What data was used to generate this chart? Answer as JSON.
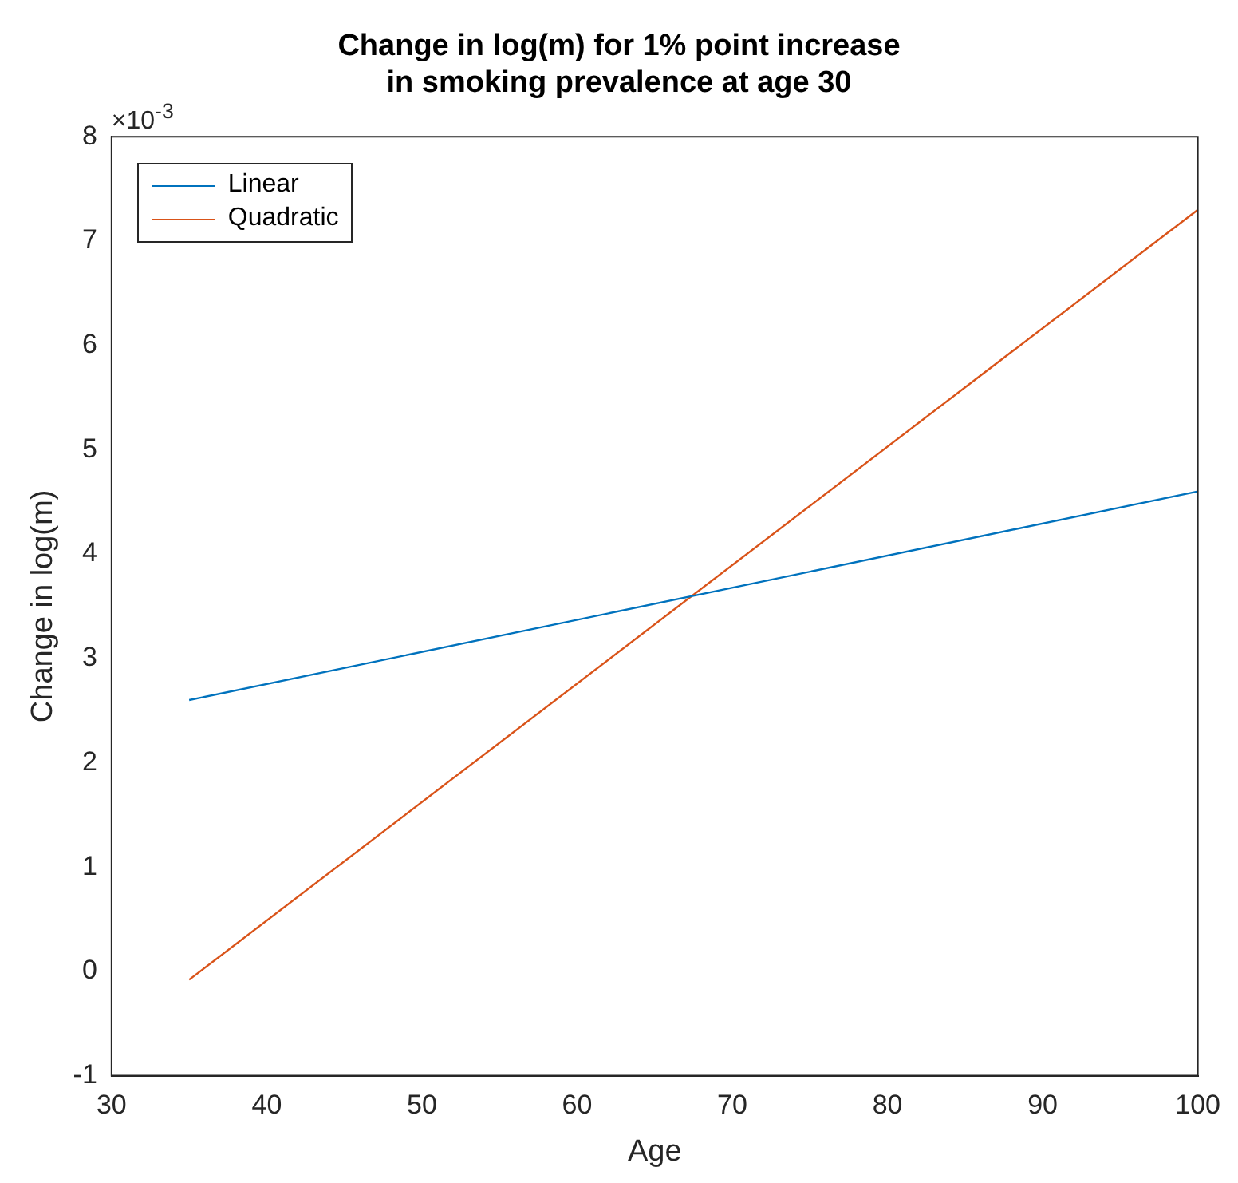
{
  "chart_data": {
    "type": "line",
    "title": "Change in log(m) for 1% point increase\nin smoking prevalence at age 30",
    "xlabel": "Age",
    "ylabel": "Change in log(m)",
    "annotations": [
      "×10$^{-3}$"
    ],
    "x": [
      35,
      100
    ],
    "series": [
      {
        "name": "Linear",
        "color": "#0072bd",
        "values": [
          2.6,
          4.6
        ]
      },
      {
        "name": "Quadratic",
        "color": "#d95319",
        "values": [
          -0.08,
          7.3
        ]
      }
    ],
    "xlim": [
      30,
      100
    ],
    "xticks": [
      30,
      40,
      50,
      60,
      70,
      80,
      90,
      100
    ],
    "ylim": [
      -1,
      8
    ],
    "yticks": [
      -1,
      0,
      1,
      2,
      3,
      4,
      5,
      6,
      7,
      8
    ],
    "grid": false,
    "legend": "top left",
    "marker": "none",
    "line_style": "solid"
  }
}
